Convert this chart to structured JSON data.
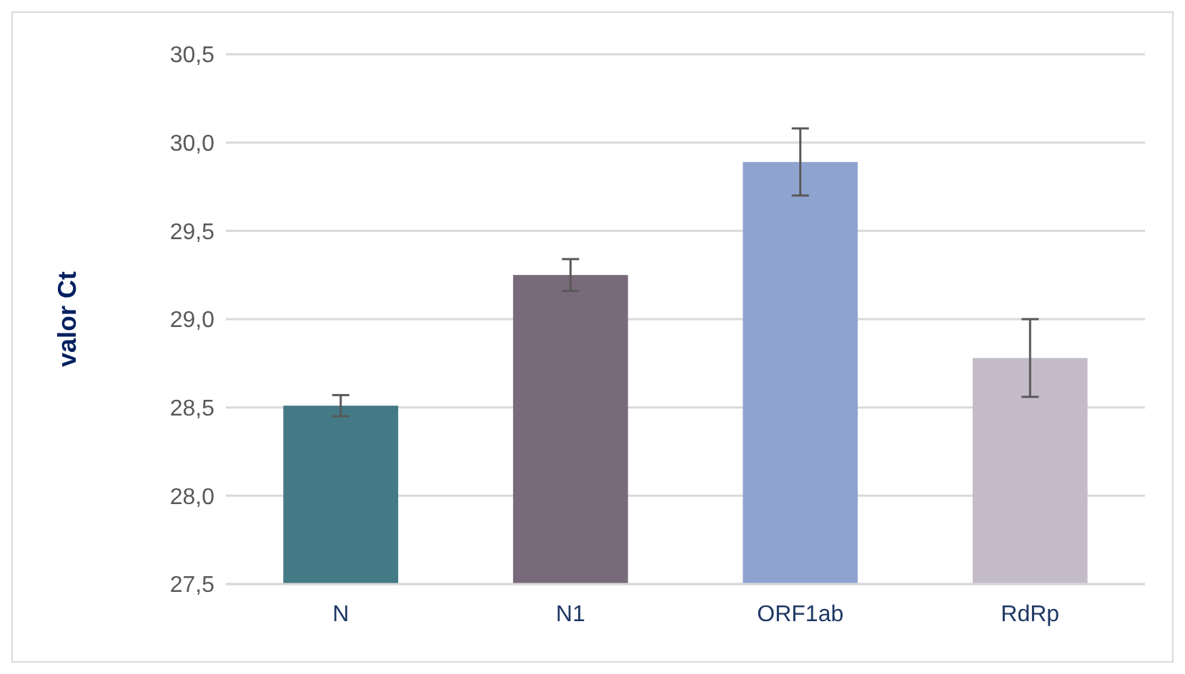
{
  "chart_data": {
    "type": "bar",
    "ylabel": "valor Ct",
    "categories": [
      "N",
      "N1",
      "ORF1ab",
      "RdRp"
    ],
    "values": [
      28.51,
      29.25,
      29.89,
      28.78
    ],
    "colors": [
      "#437a85",
      "#786a7a",
      "#8fa3d0",
      "#c3bcc8"
    ],
    "errors": [
      0.06,
      0.09,
      0.19,
      0.22
    ],
    "ylim": [
      27.5,
      30.5
    ],
    "yticks": [
      {
        "value": 27.5,
        "label": "27,5"
      },
      {
        "value": 28,
        "label": "28,0"
      },
      {
        "value": 28.5,
        "label": "28,5"
      },
      {
        "value": 29,
        "label": "29,0"
      },
      {
        "value": 29.5,
        "label": "29,5"
      },
      {
        "value": 30,
        "label": "30,0"
      },
      {
        "value": 30.5,
        "label": "30,5"
      }
    ],
    "grid": "y"
  }
}
